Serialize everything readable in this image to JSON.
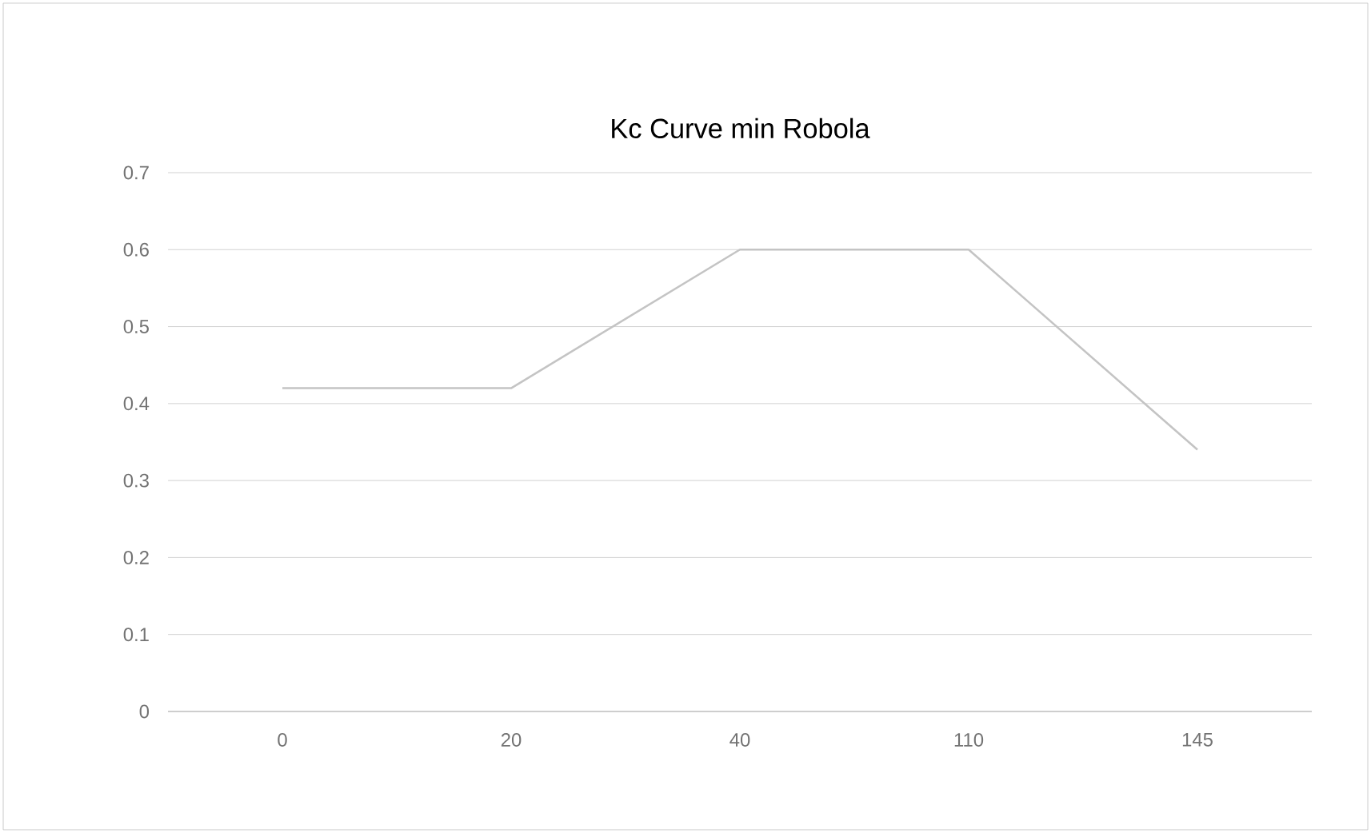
{
  "chart_data": {
    "type": "line",
    "title": "Kc Curve min Robola",
    "categories": [
      "0",
      "20",
      "40",
      "110",
      "145"
    ],
    "series": [
      {
        "color": "#c4c4c4",
        "values": [
          0.42,
          0.42,
          0.6,
          0.6,
          0.34
        ]
      }
    ],
    "ylim": [
      0,
      0.7
    ],
    "yticks": [
      0,
      0.1,
      0.2,
      0.3,
      0.4,
      0.5,
      0.6,
      0.7
    ],
    "grid": "y",
    "marker": "none",
    "line_style": "solid"
  }
}
